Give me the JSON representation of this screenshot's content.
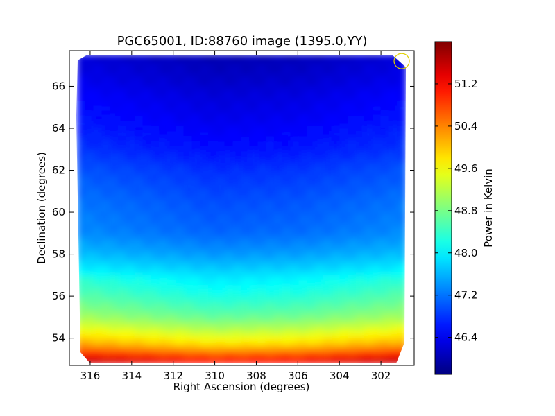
{
  "chart_data": {
    "type": "heatmap",
    "title": "PGC65001, ID:88760 image (1395.0,YY)",
    "xlabel": "Right Ascension (degrees)",
    "ylabel": "Declination (degrees)",
    "colorbar_label": "Power in Kelvin",
    "xlim": [
      317.0,
      300.4
    ],
    "ylim": [
      52.7,
      67.7
    ],
    "x_ticks": [
      316,
      314,
      312,
      310,
      308,
      306,
      304,
      302
    ],
    "y_ticks": [
      54,
      56,
      58,
      60,
      62,
      64,
      66
    ],
    "colorbar_range": [
      45.7,
      52.0
    ],
    "colorbar_ticks": [
      46.4,
      47.2,
      48.0,
      48.8,
      49.6,
      50.4,
      51.2
    ],
    "colormap": "jet",
    "grid": false,
    "map_extent": {
      "ra": [
        316.6,
        300.8
      ],
      "dec": [
        52.8,
        67.5
      ]
    },
    "source_marker": {
      "ra": 301.0,
      "dec": 67.2,
      "color": "#e0d000"
    },
    "dec_profile": {
      "dec": [
        67.5,
        66.5,
        65.5,
        64.5,
        63.0,
        62.0,
        60.5,
        59.0,
        58.0,
        57.0,
        56.0,
        55.0,
        54.2,
        53.6,
        53.1,
        52.8
      ],
      "power": [
        46.0,
        46.1,
        46.25,
        46.35,
        46.55,
        46.75,
        46.95,
        47.1,
        47.4,
        47.85,
        48.2,
        48.65,
        49.3,
        49.9,
        50.8,
        51.4
      ]
    },
    "ra_profile": {
      "ra": [
        316.6,
        314.0,
        310.0,
        306.0,
        302.0,
        300.8
      ],
      "offset": [
        0.25,
        0.15,
        0.0,
        0.05,
        0.2,
        0.25
      ]
    }
  }
}
